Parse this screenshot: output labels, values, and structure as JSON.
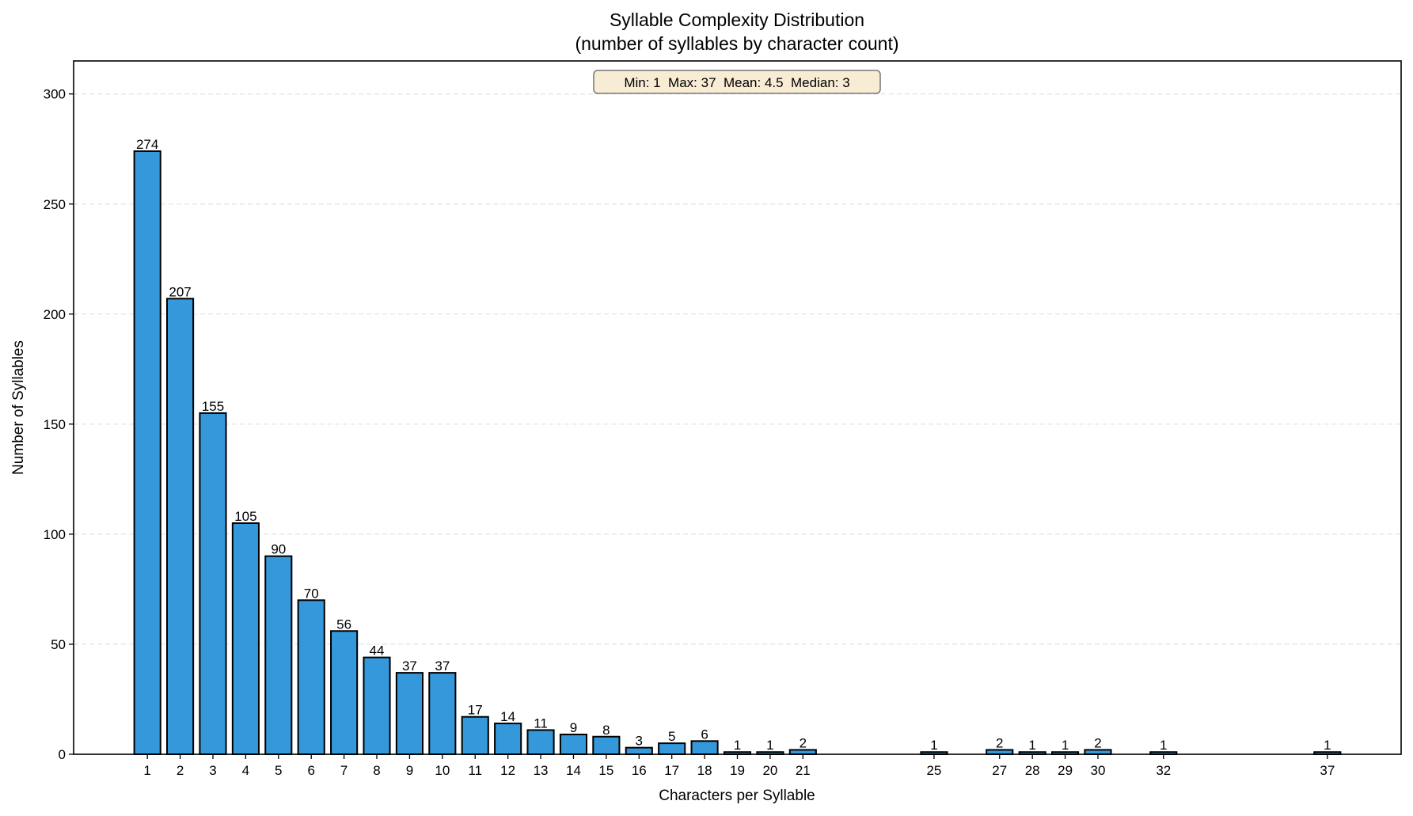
{
  "chart_data": {
    "type": "bar",
    "title": "Syllable Complexity Distribution",
    "subtitle": "(number of syllables by character count)",
    "xlabel": "Characters per Syllable",
    "ylabel": "Number of Syllables",
    "x": [
      1,
      2,
      3,
      4,
      5,
      6,
      7,
      8,
      9,
      10,
      11,
      12,
      13,
      14,
      15,
      16,
      17,
      18,
      19,
      20,
      21,
      25,
      27,
      28,
      29,
      30,
      32,
      37
    ],
    "values": [
      274,
      207,
      155,
      105,
      90,
      70,
      56,
      44,
      37,
      37,
      17,
      14,
      11,
      9,
      8,
      3,
      5,
      6,
      1,
      1,
      2,
      1,
      2,
      1,
      1,
      2,
      1,
      1
    ],
    "xlim": [
      -1.25,
      39.25
    ],
    "ylim": [
      0,
      315
    ],
    "yticks": [
      0,
      50,
      100,
      150,
      200,
      250,
      300
    ],
    "grid": "y dashed",
    "annotation": "Min: 1  Max: 37  Mean: 4.5  Median: 3",
    "colors": {
      "bar": "#3498db",
      "edge": "#000000",
      "annotation_bg": "#f8ecd4"
    }
  }
}
